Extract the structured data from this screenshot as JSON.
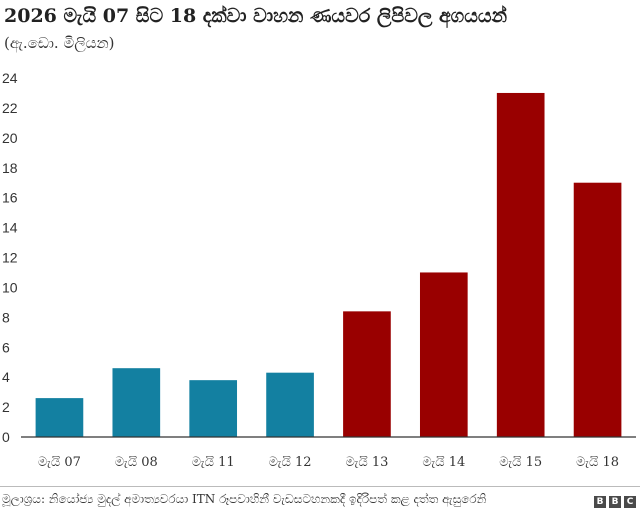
{
  "title": "2026 මැයි 07 සිට 18 දක්වා වාහන ණයවර ලිපිවල අගයයන්",
  "subtitle": "(ඇ.ඩො. මිලියන)",
  "source": "මූලාශ්‍රය: නියෝජ්‍ය මුදල් අමාත්‍යවරයා ITN රූපවාහිනී වැඩසටහනකදී ඉදිරිපත් කළ දත්ත ඇසුරෙනි",
  "logo": [
    "B",
    "B",
    "C"
  ],
  "chart_data": {
    "type": "bar",
    "categories": [
      "මැයි 07",
      "මැයි 08",
      "මැයි 11",
      "මැයි 12",
      "මැයි 13",
      "මැයි 14",
      "මැයි 15",
      "මැයි 18"
    ],
    "values": [
      2.6,
      4.6,
      3.8,
      4.3,
      8.4,
      11.0,
      23.0,
      17.0
    ],
    "colors": [
      "#1380a1",
      "#1380a1",
      "#1380a1",
      "#1380a1",
      "#990000",
      "#990000",
      "#990000",
      "#990000"
    ],
    "ylim": [
      0,
      24
    ],
    "yticks": [
      0,
      2,
      4,
      6,
      8,
      10,
      12,
      14,
      16,
      18,
      20,
      22,
      24
    ],
    "xlabel": "",
    "ylabel": "",
    "grid": false
  }
}
